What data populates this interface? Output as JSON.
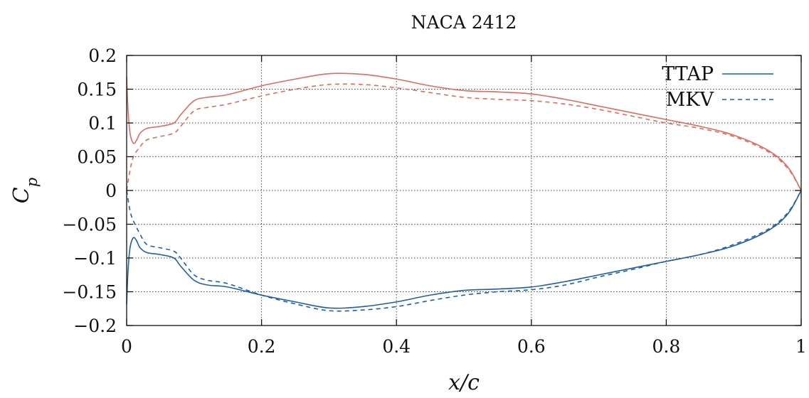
{
  "chart_data": {
    "type": "line",
    "title": "NACA 2412",
    "xlabel": "x/c",
    "ylabel": "C_p",
    "xlim": [
      0,
      1
    ],
    "ylim": [
      -0.2,
      0.2
    ],
    "xticks": [
      0,
      0.2,
      0.4,
      0.6,
      0.8,
      1
    ],
    "xtick_labels": [
      "0",
      "0.2",
      "0.4",
      "0.6",
      "0.8",
      "1"
    ],
    "yticks": [
      0.2,
      0.15,
      0.1,
      0.05,
      0,
      -0.05,
      -0.1,
      -0.15,
      -0.2
    ],
    "ytick_labels": [
      "0.2",
      "0.15",
      "0.1",
      "0.05",
      "0",
      "−0.05",
      "−0.1",
      "−0.15",
      "−0.2"
    ],
    "grid": true,
    "legend_position": "top-right",
    "legend": [
      {
        "label": "TTAP",
        "style": "solid",
        "color": "#1f5fa8"
      },
      {
        "label": "MKV",
        "style": "dashed",
        "color": "#1f5fa8"
      }
    ],
    "colors": {
      "upper": "#e06b5e",
      "lower": "#1f5fa8"
    },
    "series": [
      {
        "surface": "upper",
        "legend": "TTAP",
        "style": "solid",
        "color": "#e06b5e",
        "x": [
          0,
          0.002,
          0.005,
          0.01,
          0.015,
          0.02,
          0.03,
          0.05,
          0.07,
          0.08,
          0.1,
          0.12,
          0.15,
          0.2,
          0.25,
          0.3,
          0.35,
          0.4,
          0.45,
          0.5,
          0.55,
          0.6,
          0.65,
          0.7,
          0.75,
          0.8,
          0.85,
          0.9,
          0.95,
          0.98,
          1.0
        ],
        "y": [
          0.168,
          0.12,
          0.085,
          0.07,
          0.075,
          0.085,
          0.092,
          0.095,
          0.1,
          0.112,
          0.133,
          0.138,
          0.142,
          0.155,
          0.165,
          0.173,
          0.172,
          0.165,
          0.155,
          0.148,
          0.146,
          0.143,
          0.135,
          0.125,
          0.115,
          0.105,
          0.095,
          0.082,
          0.06,
          0.035,
          0.0
        ]
      },
      {
        "surface": "upper",
        "legend": "MKV",
        "style": "dashed",
        "color": "#e06b5e",
        "x": [
          0,
          0.005,
          0.01,
          0.02,
          0.03,
          0.05,
          0.07,
          0.08,
          0.1,
          0.12,
          0.15,
          0.2,
          0.25,
          0.3,
          0.35,
          0.4,
          0.45,
          0.5,
          0.55,
          0.6,
          0.65,
          0.7,
          0.75,
          0.8,
          0.85,
          0.9,
          0.95,
          0.98,
          1.0
        ],
        "y": [
          0.0,
          0.03,
          0.05,
          0.065,
          0.075,
          0.08,
          0.085,
          0.095,
          0.118,
          0.123,
          0.128,
          0.14,
          0.15,
          0.157,
          0.157,
          0.152,
          0.145,
          0.138,
          0.135,
          0.133,
          0.128,
          0.12,
          0.11,
          0.1,
          0.092,
          0.08,
          0.058,
          0.033,
          0.0
        ]
      },
      {
        "surface": "lower",
        "legend": "TTAP",
        "style": "solid",
        "color": "#1f5fa8",
        "x": [
          0,
          0.002,
          0.005,
          0.01,
          0.015,
          0.02,
          0.03,
          0.05,
          0.07,
          0.08,
          0.1,
          0.12,
          0.15,
          0.2,
          0.25,
          0.3,
          0.35,
          0.4,
          0.45,
          0.5,
          0.55,
          0.6,
          0.65,
          0.7,
          0.75,
          0.8,
          0.85,
          0.9,
          0.95,
          0.98,
          1.0
        ],
        "y": [
          -0.168,
          -0.12,
          -0.085,
          -0.07,
          -0.075,
          -0.085,
          -0.092,
          -0.095,
          -0.1,
          -0.112,
          -0.133,
          -0.14,
          -0.143,
          -0.155,
          -0.165,
          -0.174,
          -0.172,
          -0.165,
          -0.155,
          -0.148,
          -0.146,
          -0.143,
          -0.135,
          -0.125,
          -0.115,
          -0.105,
          -0.095,
          -0.082,
          -0.06,
          -0.035,
          0.0
        ]
      },
      {
        "surface": "lower",
        "legend": "MKV",
        "style": "dashed",
        "color": "#1f5fa8",
        "x": [
          0,
          0.005,
          0.01,
          0.02,
          0.03,
          0.05,
          0.07,
          0.08,
          0.1,
          0.12,
          0.15,
          0.2,
          0.25,
          0.3,
          0.35,
          0.4,
          0.45,
          0.5,
          0.55,
          0.6,
          0.65,
          0.7,
          0.75,
          0.8,
          0.85,
          0.9,
          0.95,
          0.98,
          1.0
        ],
        "y": [
          0.0,
          -0.03,
          -0.045,
          -0.065,
          -0.08,
          -0.085,
          -0.09,
          -0.1,
          -0.125,
          -0.133,
          -0.138,
          -0.155,
          -0.168,
          -0.178,
          -0.177,
          -0.172,
          -0.163,
          -0.155,
          -0.15,
          -0.147,
          -0.14,
          -0.128,
          -0.117,
          -0.105,
          -0.095,
          -0.08,
          -0.058,
          -0.033,
          0.0
        ]
      }
    ]
  }
}
